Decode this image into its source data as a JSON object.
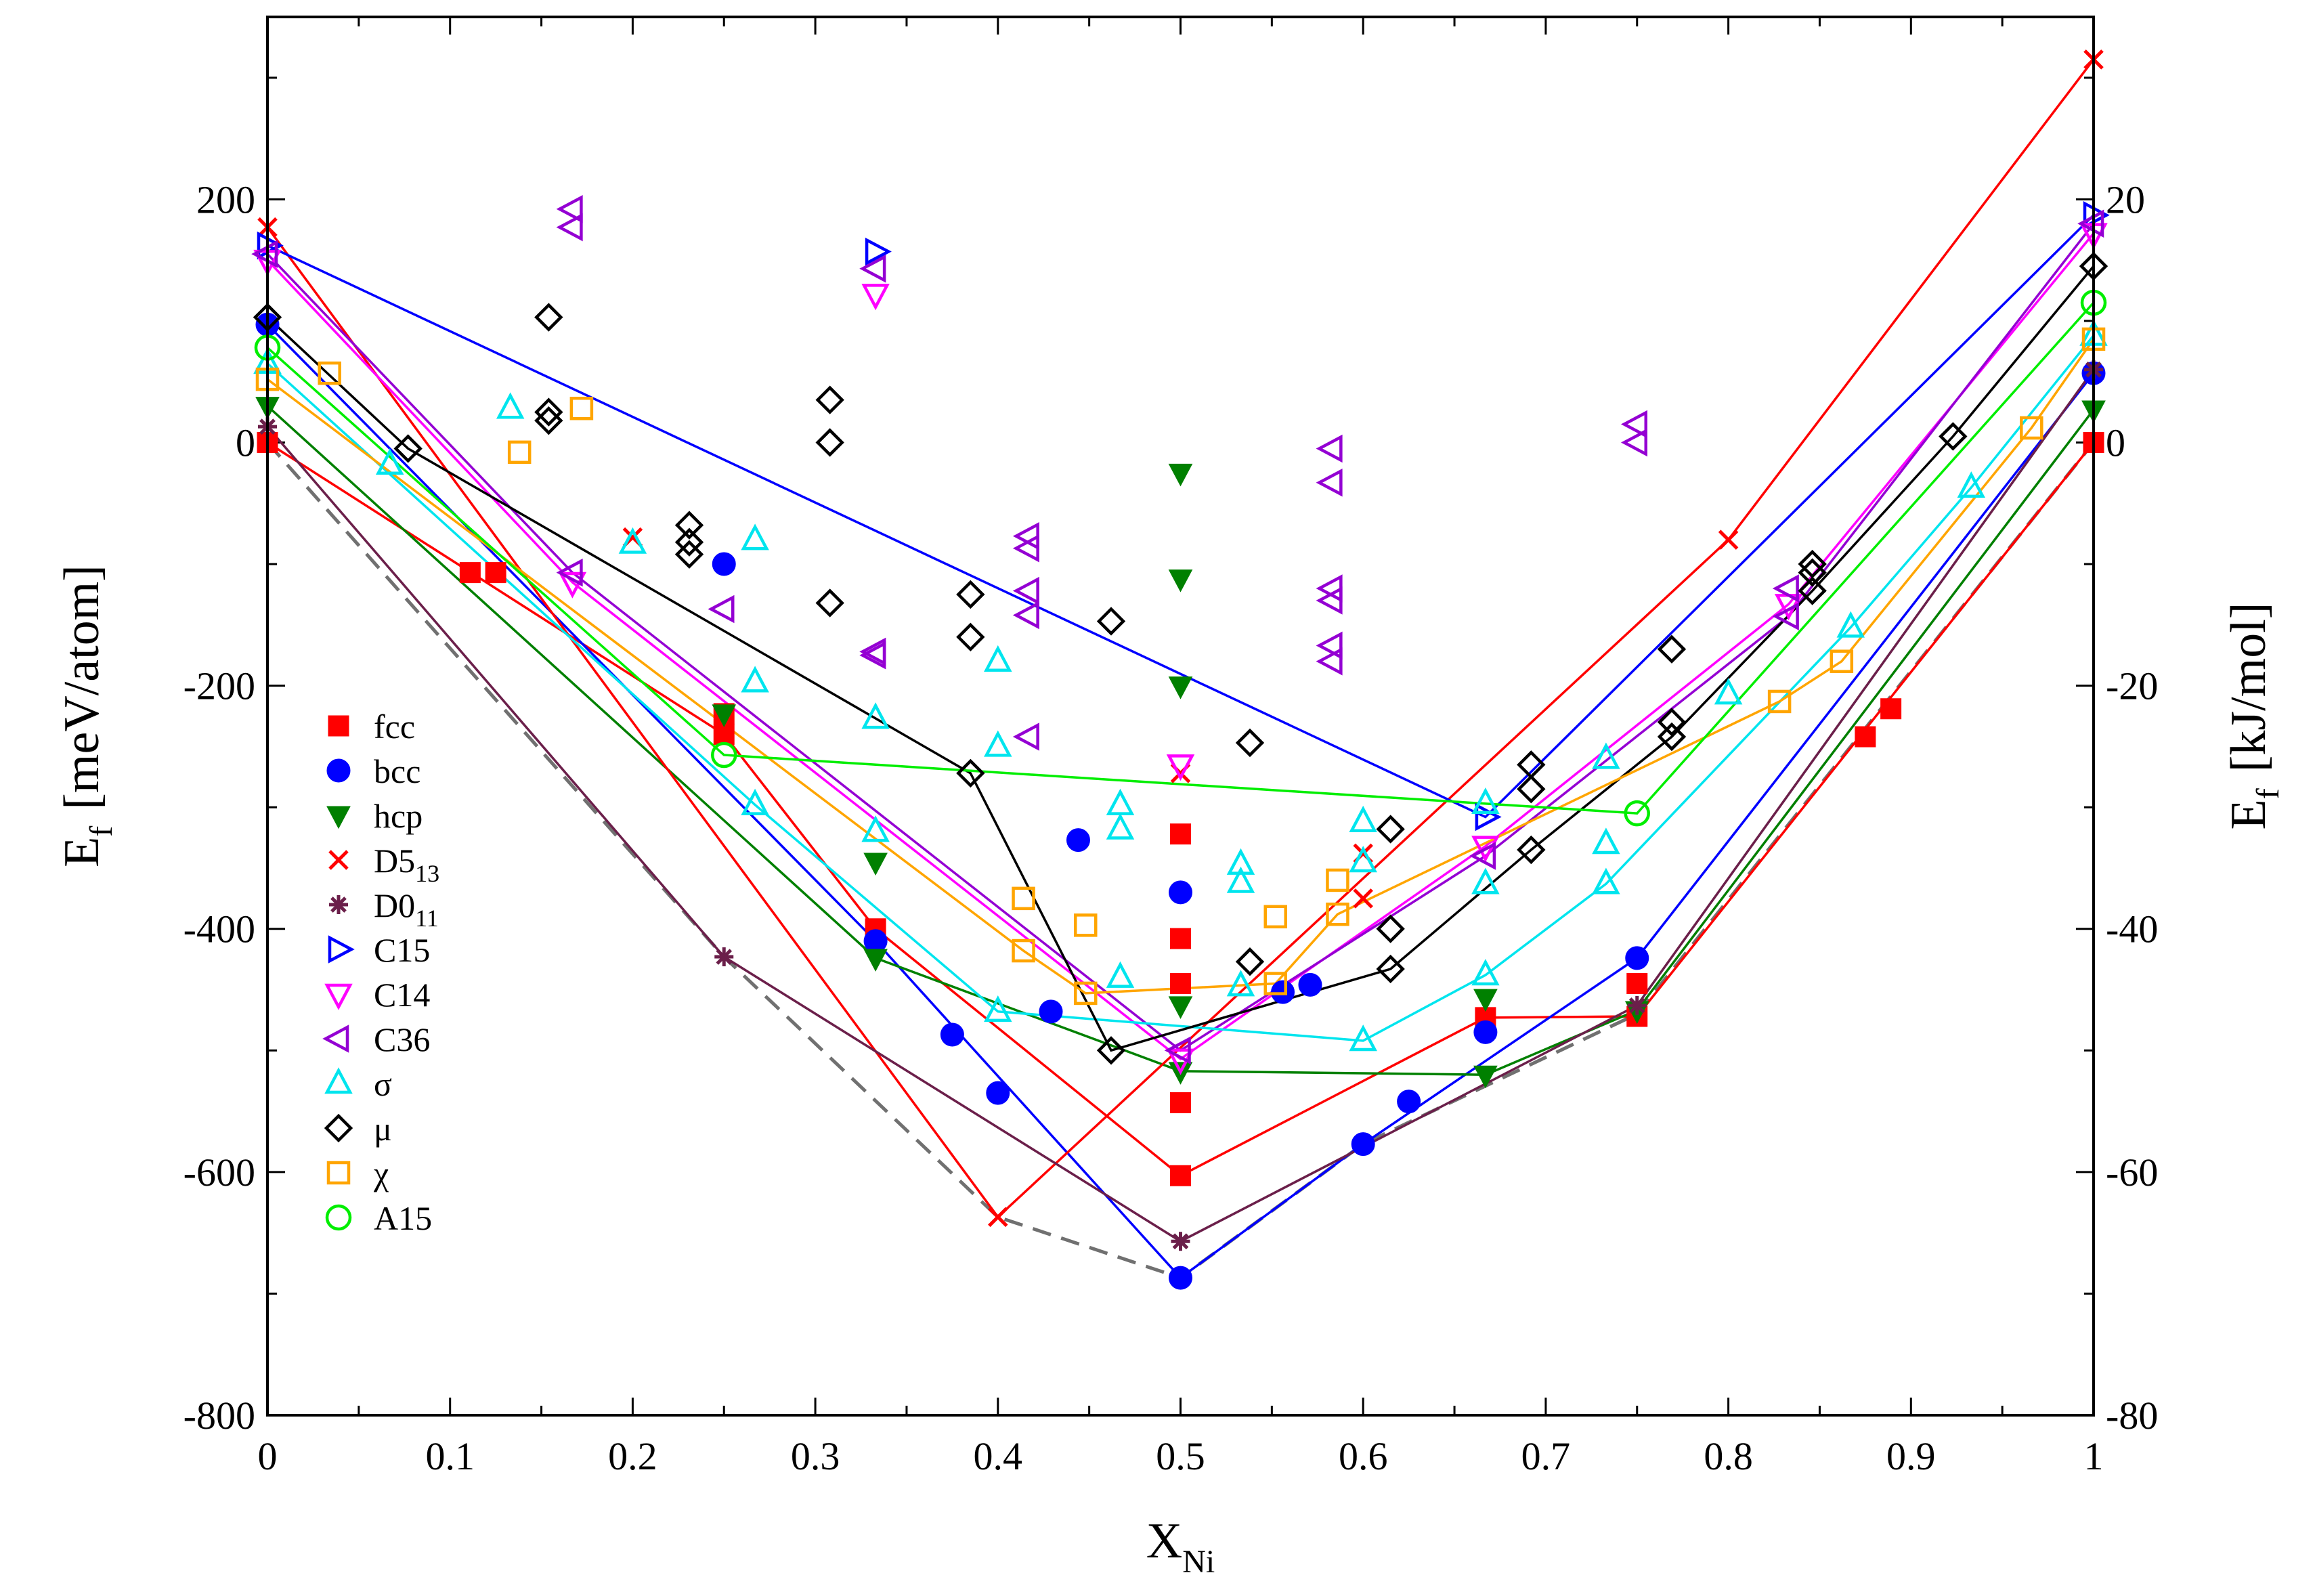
{
  "chart_data": {
    "type": "scatter",
    "title": "",
    "xlabel_main": "X",
    "xlabel_sub": "Ni",
    "ylabel_main": "E",
    "ylabel_sub": "f",
    "ylabel_unit": "[meV/atom]",
    "y2label_main": "E",
    "y2label_sub": "f",
    "y2label_unit": "[kJ/mol]",
    "xlim": [
      0,
      1
    ],
    "ylim": [
      -800,
      350
    ],
    "y2lim": [
      -80,
      35
    ],
    "xticks": [
      0,
      0.1,
      0.2,
      0.3,
      0.4,
      0.5,
      0.6,
      0.7,
      0.8,
      0.9,
      1
    ],
    "xtick_labels": [
      "0",
      "0.1",
      "0.2",
      "0.3",
      "0.4",
      "0.5",
      "0.6",
      "0.7",
      "0.8",
      "0.9",
      "1"
    ],
    "yticks": [
      -800,
      -600,
      -400,
      -200,
      0,
      200
    ],
    "ytick_labels": [
      "-800",
      "-600",
      "-400",
      "-200",
      "0",
      "200"
    ],
    "y2ticks": [
      -80,
      -60,
      -40,
      -20,
      0,
      20
    ],
    "y2tick_labels": [
      "-80",
      "-60",
      "-40",
      "-20",
      "0",
      "20"
    ],
    "legend_position": "left",
    "hull": {
      "color": "#707070",
      "dashed": true,
      "points": [
        [
          0,
          0
        ],
        [
          0.25,
          -423
        ],
        [
          0.4,
          -637
        ],
        [
          0.5,
          -687
        ],
        [
          0.6,
          -577
        ],
        [
          0.75,
          -470
        ],
        [
          1,
          0
        ]
      ]
    },
    "series": [
      {
        "name": "fcc",
        "label_main": "fcc",
        "label_sub": "",
        "marker": "square-filled",
        "color": "#ff0000",
        "points": [
          [
            0,
            0
          ],
          [
            0.111,
            -107
          ],
          [
            0.125,
            -107
          ],
          [
            0.25,
            -223
          ],
          [
            0.25,
            -240
          ],
          [
            0.333,
            -400
          ],
          [
            0.5,
            -322
          ],
          [
            0.5,
            -408
          ],
          [
            0.5,
            -445
          ],
          [
            0.5,
            -543
          ],
          [
            0.5,
            -603
          ],
          [
            0.667,
            -473
          ],
          [
            0.75,
            -445
          ],
          [
            0.75,
            -472
          ],
          [
            0.875,
            -242
          ],
          [
            0.889,
            -219
          ],
          [
            1,
            0
          ]
        ],
        "line": [
          [
            0,
            0
          ],
          [
            0.25,
            -240
          ],
          [
            0.333,
            -400
          ],
          [
            0.5,
            -603
          ],
          [
            0.667,
            -473
          ],
          [
            0.75,
            -472
          ],
          [
            1,
            0
          ]
        ]
      },
      {
        "name": "bcc",
        "label_main": "bcc",
        "label_sub": "",
        "marker": "circle-filled",
        "color": "#0000ff",
        "points": [
          [
            0,
            97
          ],
          [
            0.25,
            -100
          ],
          [
            0.333,
            -410
          ],
          [
            0.375,
            -487
          ],
          [
            0.4,
            -535
          ],
          [
            0.429,
            -468
          ],
          [
            0.444,
            -327
          ],
          [
            0.5,
            -370
          ],
          [
            0.5,
            -687
          ],
          [
            0.556,
            -452
          ],
          [
            0.571,
            -446
          ],
          [
            0.6,
            -577
          ],
          [
            0.625,
            -542
          ],
          [
            0.667,
            -485
          ],
          [
            0.75,
            -424
          ],
          [
            1,
            57
          ]
        ],
        "line": [
          [
            0,
            97
          ],
          [
            0.333,
            -410
          ],
          [
            0.5,
            -687
          ],
          [
            0.6,
            -577
          ],
          [
            0.75,
            -424
          ],
          [
            1,
            57
          ]
        ]
      },
      {
        "name": "hcp",
        "label_main": "hcp",
        "label_sub": "",
        "marker": "triangle-down-filled",
        "color": "#008000",
        "points": [
          [
            0,
            30
          ],
          [
            0.25,
            -223
          ],
          [
            0.333,
            -345
          ],
          [
            0.333,
            -424
          ],
          [
            0.5,
            -25
          ],
          [
            0.5,
            -112
          ],
          [
            0.5,
            -200
          ],
          [
            0.5,
            -463
          ],
          [
            0.5,
            -517
          ],
          [
            0.667,
            -457
          ],
          [
            0.667,
            -520
          ],
          [
            0.75,
            -467
          ],
          [
            1,
            27
          ]
        ],
        "line": [
          [
            0,
            30
          ],
          [
            0.333,
            -424
          ],
          [
            0.5,
            -517
          ],
          [
            0.667,
            -520
          ],
          [
            0.75,
            -467
          ],
          [
            1,
            27
          ]
        ]
      },
      {
        "name": "D5_13",
        "label_main": "D5",
        "label_sub": "13",
        "marker": "cross",
        "color": "#ff0000",
        "points": [
          [
            0,
            177
          ],
          [
            0.2,
            -78
          ],
          [
            0.4,
            -637
          ],
          [
            0.5,
            -272
          ],
          [
            0.6,
            -338
          ],
          [
            0.6,
            -375
          ],
          [
            0.8,
            -80
          ],
          [
            1,
            315
          ]
        ],
        "line": [
          [
            0,
            177
          ],
          [
            0.4,
            -637
          ],
          [
            0.8,
            -80
          ],
          [
            1,
            315
          ]
        ]
      },
      {
        "name": "D0_11",
        "label_main": "D0",
        "label_sub": "11",
        "marker": "star",
        "color": "#6b1f4a",
        "points": [
          [
            0,
            13
          ],
          [
            0.25,
            -423
          ],
          [
            0.5,
            -657
          ],
          [
            0.75,
            -463
          ],
          [
            1,
            60
          ]
        ],
        "line": [
          [
            0,
            13
          ],
          [
            0.25,
            -423
          ],
          [
            0.5,
            -657
          ],
          [
            0.75,
            -463
          ],
          [
            1,
            60
          ]
        ]
      },
      {
        "name": "C15",
        "label_main": "C15",
        "label_sub": "",
        "marker": "triangle-right-open",
        "color": "#0000ff",
        "points": [
          [
            0,
            162
          ],
          [
            0.333,
            157
          ],
          [
            0.667,
            -308
          ],
          [
            1,
            187
          ]
        ],
        "line": [
          [
            0,
            162
          ],
          [
            0.667,
            -308
          ],
          [
            1,
            187
          ]
        ]
      },
      {
        "name": "C14",
        "label_main": "C14",
        "label_sub": "",
        "marker": "triangle-down-open",
        "color": "#ff00ff",
        "points": [
          [
            0,
            150
          ],
          [
            0.167,
            -115
          ],
          [
            0.333,
            122
          ],
          [
            0.5,
            -265
          ],
          [
            0.5,
            -507
          ],
          [
            0.667,
            -332
          ],
          [
            0.833,
            -133
          ],
          [
            1,
            172
          ]
        ],
        "line": [
          [
            0,
            150
          ],
          [
            0.167,
            -115
          ],
          [
            0.5,
            -507
          ],
          [
            0.667,
            -332
          ],
          [
            0.833,
            -133
          ],
          [
            1,
            172
          ]
        ]
      },
      {
        "name": "C36",
        "label_main": "C36",
        "label_sub": "",
        "marker": "triangle-left-open",
        "color": "#9400d3",
        "points": [
          [
            0,
            155
          ],
          [
            0.167,
            192
          ],
          [
            0.167,
            177
          ],
          [
            0.167,
            -107
          ],
          [
            0.25,
            -137
          ],
          [
            0.333,
            -172
          ],
          [
            0.333,
            -175
          ],
          [
            0.333,
            143
          ],
          [
            0.417,
            -77
          ],
          [
            0.417,
            -87
          ],
          [
            0.417,
            -122
          ],
          [
            0.417,
            -142
          ],
          [
            0.417,
            -242
          ],
          [
            0.5,
            -500
          ],
          [
            0.583,
            -5
          ],
          [
            0.583,
            -33
          ],
          [
            0.583,
            -120
          ],
          [
            0.583,
            -130
          ],
          [
            0.583,
            -167
          ],
          [
            0.583,
            -180
          ],
          [
            0.667,
            -340
          ],
          [
            0.75,
            15
          ],
          [
            0.75,
            0
          ],
          [
            0.833,
            -120
          ],
          [
            0.833,
            -143
          ],
          [
            1,
            180
          ]
        ],
        "line": [
          [
            0,
            155
          ],
          [
            0.167,
            -107
          ],
          [
            0.5,
            -500
          ],
          [
            0.667,
            -340
          ],
          [
            0.833,
            -143
          ],
          [
            1,
            180
          ]
        ]
      },
      {
        "name": "σ",
        "label_main": "σ",
        "label_sub": "",
        "marker": "triangle-up-open",
        "color": "#00e5ee",
        "points": [
          [
            0,
            65
          ],
          [
            0.067,
            -18
          ],
          [
            0.133,
            28
          ],
          [
            0.2,
            -83
          ],
          [
            0.267,
            -80
          ],
          [
            0.267,
            -197
          ],
          [
            0.267,
            -298
          ],
          [
            0.333,
            -227
          ],
          [
            0.333,
            -320
          ],
          [
            0.4,
            -180
          ],
          [
            0.4,
            -250
          ],
          [
            0.4,
            -468
          ],
          [
            0.467,
            -298
          ],
          [
            0.467,
            -318
          ],
          [
            0.467,
            -440
          ],
          [
            0.533,
            -347
          ],
          [
            0.533,
            -362
          ],
          [
            0.533,
            -447
          ],
          [
            0.6,
            -312
          ],
          [
            0.6,
            -345
          ],
          [
            0.6,
            -492
          ],
          [
            0.667,
            -297
          ],
          [
            0.667,
            -363
          ],
          [
            0.667,
            -438
          ],
          [
            0.733,
            -260
          ],
          [
            0.733,
            -330
          ],
          [
            0.733,
            -363
          ],
          [
            0.8,
            -207
          ],
          [
            0.867,
            -152
          ],
          [
            0.933,
            -37
          ],
          [
            1,
            88
          ]
        ],
        "line": [
          [
            0,
            65
          ],
          [
            0.267,
            -298
          ],
          [
            0.4,
            -468
          ],
          [
            0.6,
            -492
          ],
          [
            0.667,
            -438
          ],
          [
            0.733,
            -363
          ],
          [
            0.867,
            -152
          ],
          [
            0.933,
            -37
          ],
          [
            1,
            88
          ]
        ]
      },
      {
        "name": "μ",
        "label_main": "μ",
        "label_sub": "",
        "marker": "diamond-open",
        "color": "#000000",
        "points": [
          [
            0,
            103
          ],
          [
            0.077,
            -5
          ],
          [
            0.154,
            103
          ],
          [
            0.154,
            25
          ],
          [
            0.154,
            18
          ],
          [
            0.231,
            -68
          ],
          [
            0.231,
            -82
          ],
          [
            0.231,
            -92
          ],
          [
            0.308,
            35
          ],
          [
            0.308,
            0
          ],
          [
            0.308,
            -132
          ],
          [
            0.385,
            -125
          ],
          [
            0.385,
            -160
          ],
          [
            0.385,
            -272
          ],
          [
            0.462,
            -147
          ],
          [
            0.462,
            -500
          ],
          [
            0.538,
            -247
          ],
          [
            0.538,
            -427
          ],
          [
            0.615,
            -318
          ],
          [
            0.615,
            -400
          ],
          [
            0.615,
            -433
          ],
          [
            0.692,
            -265
          ],
          [
            0.692,
            -285
          ],
          [
            0.692,
            -335
          ],
          [
            0.769,
            -170
          ],
          [
            0.769,
            -230
          ],
          [
            0.769,
            -242
          ],
          [
            0.846,
            -100
          ],
          [
            0.846,
            -107
          ],
          [
            0.846,
            -122
          ],
          [
            0.923,
            5
          ],
          [
            1,
            145
          ]
        ],
        "line": [
          [
            0,
            103
          ],
          [
            0.077,
            -5
          ],
          [
            0.385,
            -272
          ],
          [
            0.462,
            -500
          ],
          [
            0.615,
            -433
          ],
          [
            0.692,
            -335
          ],
          [
            0.769,
            -242
          ],
          [
            0.846,
            -122
          ],
          [
            0.923,
            5
          ],
          [
            1,
            145
          ]
        ]
      },
      {
        "name": "χ",
        "label_main": "χ",
        "label_sub": "",
        "marker": "square-open",
        "color": "#ffa500",
        "points": [
          [
            0,
            52
          ],
          [
            0.034,
            57
          ],
          [
            0.138,
            -8
          ],
          [
            0.172,
            28
          ],
          [
            0.414,
            -375
          ],
          [
            0.414,
            -418
          ],
          [
            0.448,
            -397
          ],
          [
            0.448,
            -453
          ],
          [
            0.552,
            -390
          ],
          [
            0.552,
            -445
          ],
          [
            0.586,
            -360
          ],
          [
            0.586,
            -388
          ],
          [
            0.828,
            -213
          ],
          [
            0.862,
            -180
          ],
          [
            0.966,
            12
          ],
          [
            1,
            85
          ]
        ],
        "line": [
          [
            0,
            52
          ],
          [
            0.414,
            -418
          ],
          [
            0.448,
            -453
          ],
          [
            0.552,
            -445
          ],
          [
            0.586,
            -388
          ],
          [
            0.828,
            -213
          ],
          [
            0.862,
            -180
          ],
          [
            0.966,
            12
          ],
          [
            1,
            85
          ]
        ]
      },
      {
        "name": "A15",
        "label_main": "A15",
        "label_sub": "",
        "marker": "circle-open",
        "color": "#00ee00",
        "points": [
          [
            0,
            78
          ],
          [
            0.25,
            -257
          ],
          [
            0.75,
            -305
          ],
          [
            1,
            115
          ]
        ],
        "line": [
          [
            0,
            78
          ],
          [
            0.25,
            -257
          ],
          [
            0.75,
            -305
          ],
          [
            1,
            115
          ]
        ]
      }
    ]
  }
}
